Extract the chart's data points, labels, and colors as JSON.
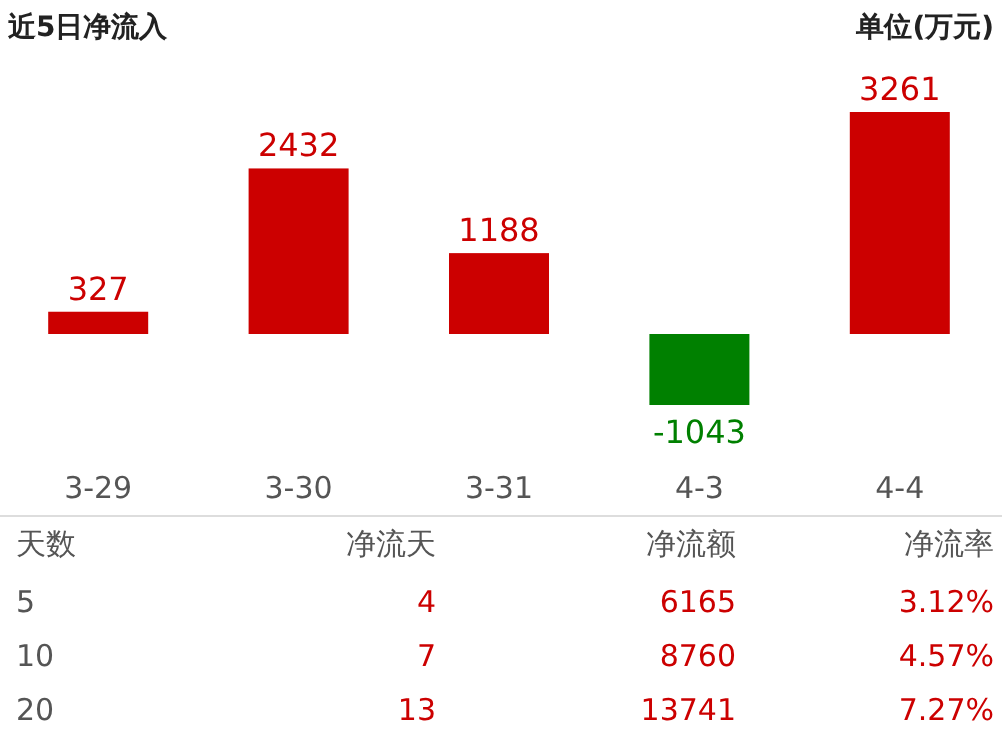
{
  "chart_data": [
    {
      "type": "bar",
      "title": "近5日净流入",
      "annotations": [
        "单位(万元)"
      ],
      "categories": [
        "3-29",
        "3-30",
        "3-31",
        "4-3",
        "4-4"
      ],
      "values": [
        327,
        2432,
        1188,
        -1043,
        3261
      ],
      "colors": [
        "#cc0000",
        "#cc0000",
        "#cc0000",
        "#008000",
        "#cc0000"
      ],
      "data_labels": true
    },
    {
      "type": "other",
      "categories": [
        "天数",
        "净流天",
        "净流额",
        "净流率"
      ],
      "cell_labels": [
        [
          "5",
          "4",
          "6165",
          "3.12%"
        ],
        [
          "10",
          "7",
          "8760",
          "4.57%"
        ],
        [
          "20",
          "13",
          "13741",
          "7.27%"
        ]
      ]
    }
  ]
}
